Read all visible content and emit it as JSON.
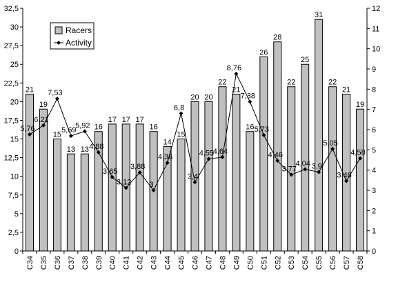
{
  "chart_data": {
    "type": "bar",
    "categories": [
      "C34",
      "C35",
      "C36",
      "C37",
      "C38",
      "C39",
      "C40",
      "C41",
      "C42",
      "C43",
      "C44",
      "C45",
      "C46",
      "C47",
      "C48",
      "C49",
      "C50",
      "C51",
      "C52",
      "C53",
      "C54",
      "C55",
      "C56",
      "C57",
      "C58"
    ],
    "series": [
      {
        "name": "Racers",
        "type": "bar",
        "axis": "left",
        "values": [
          21,
          19,
          15,
          13,
          13,
          16,
          17,
          17,
          17,
          16,
          14,
          15,
          20,
          20,
          22,
          21,
          16,
          26,
          28,
          22,
          25,
          31,
          22,
          21,
          19
        ],
        "labels": [
          "21",
          "19",
          "15",
          "13",
          "13",
          "16",
          "17",
          "17",
          "17",
          "16",
          "14",
          "15",
          "20",
          "20",
          "22",
          "21",
          "16",
          "26",
          "28",
          "22",
          "25",
          "31",
          "22",
          "21",
          "19"
        ]
      },
      {
        "name": "Activity",
        "type": "line",
        "axis": "right",
        "values": [
          5.76,
          6.21,
          7.53,
          5.69,
          5.92,
          4.88,
          3.65,
          3.12,
          3.88,
          3,
          4.36,
          6.8,
          3.4,
          4.55,
          4.64,
          8.76,
          7.38,
          5.73,
          4.46,
          3.77,
          4.04,
          3.9,
          5.05,
          3.46,
          4.58
        ],
        "labels": [
          "5,76",
          "6,21",
          "7,53",
          "5,69",
          "5,92",
          "4,88",
          "3,65",
          "3,12",
          "3,88",
          "3",
          "4,36",
          "6,8",
          "3,4",
          "4,55",
          "4,64",
          "8,76",
          "7,38",
          "5,73",
          "4,46",
          "3,77",
          "4,04",
          "3,9",
          "5,05",
          "3,46",
          "4,58"
        ]
      }
    ],
    "left_axis": {
      "ylim": [
        0,
        32.5
      ],
      "ticks": [
        0,
        2.5,
        5,
        7.5,
        10,
        12.5,
        15,
        17.5,
        20,
        22.5,
        25,
        27.5,
        30,
        32.5
      ],
      "tick_labels": [
        "0",
        "2,5",
        "5",
        "7,5",
        "10",
        "12,5",
        "15",
        "17,5",
        "20",
        "22,5",
        "25",
        "27,5",
        "30",
        "32,5"
      ]
    },
    "right_axis": {
      "ylim": [
        0,
        12
      ],
      "ticks": [
        0,
        1,
        2,
        3,
        4,
        5,
        6,
        7,
        8,
        9,
        10,
        11,
        12
      ],
      "tick_labels": [
        "0",
        "1",
        "2",
        "3",
        "4",
        "5",
        "6",
        "7",
        "8",
        "9",
        "10",
        "11",
        "12"
      ]
    },
    "grid": false,
    "legend": {
      "position": "top-left",
      "entries": [
        "Racers",
        "Activity"
      ]
    },
    "colors": {
      "bar_fill": "#c0c0c0",
      "bar_stroke": "#000000",
      "line": "#000000",
      "axis": "#000000",
      "background": "#ffffff"
    }
  }
}
